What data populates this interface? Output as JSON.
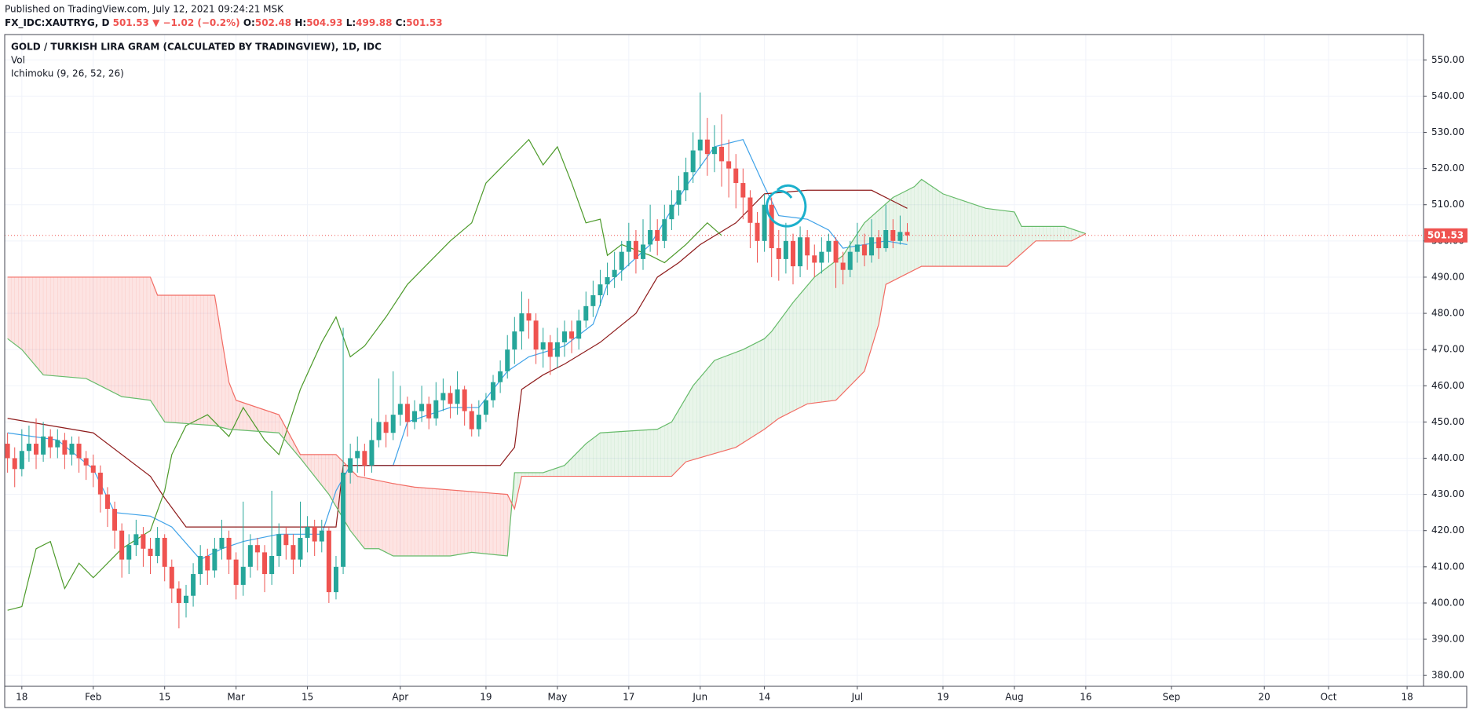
{
  "header": {
    "published": "Published on TradingView.com, July 12, 2021 09:24:21 MSK",
    "symbol": "FX_IDC:XAUTRYG, D",
    "change": "▼ −1.02 (−0.2%)",
    "o": "O:",
    "h": "H:",
    "l": "L:",
    "c": "C:"
  },
  "chart_data": {
    "type": "candlestick",
    "title": "GOLD / TURKISH LIRA GRAM (CALCULATED BY TRADINGVIEW), 1D, IDC",
    "indicators": [
      "Vol",
      "Ichimoku (9, 26, 52, 26)"
    ],
    "up_color": "#26a69a",
    "down_color": "#ef5350",
    "grid": true,
    "xlim": [
      -0.4,
      198.3
    ],
    "ylim": [
      377,
      557
    ],
    "xticks": [
      {
        "value": 2,
        "label": "18"
      },
      {
        "value": 12,
        "label": "Feb"
      },
      {
        "value": 22,
        "label": "15"
      },
      {
        "value": 32,
        "label": "Mar"
      },
      {
        "value": 42,
        "label": "15"
      },
      {
        "value": 55,
        "label": "Apr"
      },
      {
        "value": 67,
        "label": "19"
      },
      {
        "value": 77,
        "label": "May"
      },
      {
        "value": 87,
        "label": "17"
      },
      {
        "value": 97,
        "label": "Jun"
      },
      {
        "value": 106,
        "label": "14"
      },
      {
        "value": 119,
        "label": "Jul"
      },
      {
        "value": 131,
        "label": "19"
      },
      {
        "value": 141,
        "label": "Aug"
      },
      {
        "value": 151,
        "label": "16"
      },
      {
        "value": 163,
        "label": "Sep"
      },
      {
        "value": 176,
        "label": "20"
      },
      {
        "value": 185,
        "label": "Oct"
      },
      {
        "value": 196,
        "label": "18"
      }
    ],
    "yticks": [
      {
        "value": 380,
        "label": "380.00"
      },
      {
        "value": 390,
        "label": "390.00"
      },
      {
        "value": 400,
        "label": "400.00"
      },
      {
        "value": 410,
        "label": "410.00"
      },
      {
        "value": 420,
        "label": "420.00"
      },
      {
        "value": 430,
        "label": "430.00"
      },
      {
        "value": 440,
        "label": "440.00"
      },
      {
        "value": 450,
        "label": "450.00"
      },
      {
        "value": 460,
        "label": "460.00"
      },
      {
        "value": 470,
        "label": "470.00"
      },
      {
        "value": 480,
        "label": "480.00"
      },
      {
        "value": 490,
        "label": "490.00"
      },
      {
        "value": 500,
        "label": "500.00"
      },
      {
        "value": 510,
        "label": "510.00"
      },
      {
        "value": 520,
        "label": "520.00"
      },
      {
        "value": 530,
        "label": "530.00"
      },
      {
        "value": 540,
        "label": "540.00"
      },
      {
        "value": 550,
        "label": "550.00"
      }
    ],
    "ohlc": [
      [
        444,
        447,
        436,
        440
      ],
      [
        440,
        443,
        432,
        437
      ],
      [
        437,
        448,
        435,
        442
      ],
      [
        442,
        449,
        439,
        444
      ],
      [
        444,
        451,
        437,
        441
      ],
      [
        441,
        450,
        439,
        446
      ],
      [
        446,
        448,
        440,
        443
      ],
      [
        443,
        448,
        440,
        445
      ],
      [
        445,
        447,
        437,
        441
      ],
      [
        441,
        446,
        438,
        444
      ],
      [
        444,
        446,
        436,
        440
      ],
      [
        440,
        442,
        434,
        438
      ],
      [
        438,
        441,
        432,
        436
      ],
      [
        436,
        438,
        425,
        430
      ],
      [
        430,
        432,
        421,
        426
      ],
      [
        426,
        428,
        415,
        420
      ],
      [
        420,
        422,
        407,
        412
      ],
      [
        412,
        419,
        408,
        416
      ],
      [
        416,
        423,
        413,
        419
      ],
      [
        419,
        421,
        410,
        415
      ],
      [
        415,
        418,
        408,
        413
      ],
      [
        413,
        421,
        411,
        418
      ],
      [
        418,
        419,
        406,
        410
      ],
      [
        410,
        412,
        400,
        404
      ],
      [
        404,
        406,
        393,
        400
      ],
      [
        400,
        405,
        396,
        402
      ],
      [
        402,
        411,
        399,
        408
      ],
      [
        408,
        416,
        405,
        413
      ],
      [
        413,
        415,
        405,
        409
      ],
      [
        409,
        418,
        407,
        415
      ],
      [
        415,
        423,
        412,
        418
      ],
      [
        418,
        420,
        408,
        412
      ],
      [
        412,
        414,
        401,
        405
      ],
      [
        405,
        428,
        402,
        410
      ],
      [
        410,
        419,
        407,
        416
      ],
      [
        416,
        418,
        409,
        414
      ],
      [
        414,
        416,
        403,
        408
      ],
      [
        408,
        431,
        405,
        413
      ],
      [
        413,
        422,
        410,
        419
      ],
      [
        419,
        421,
        412,
        416
      ],
      [
        416,
        419,
        408,
        412
      ],
      [
        412,
        428,
        410,
        418
      ],
      [
        418,
        424,
        414,
        421
      ],
      [
        421,
        423,
        413,
        417
      ],
      [
        417,
        423,
        414,
        420
      ],
      [
        420,
        421,
        400,
        403
      ],
      [
        403,
        413,
        401,
        410
      ],
      [
        410,
        476,
        408,
        436
      ],
      [
        436,
        444,
        433,
        440
      ],
      [
        440,
        446,
        436,
        442
      ],
      [
        442,
        444,
        435,
        438
      ],
      [
        438,
        451,
        436,
        445
      ],
      [
        445,
        462,
        443,
        450
      ],
      [
        450,
        452,
        443,
        447
      ],
      [
        447,
        464,
        445,
        452
      ],
      [
        452,
        460,
        449,
        455
      ],
      [
        455,
        457,
        446,
        450
      ],
      [
        450,
        456,
        448,
        453
      ],
      [
        453,
        460,
        450,
        455
      ],
      [
        455,
        457,
        448,
        451
      ],
      [
        451,
        461,
        449,
        456
      ],
      [
        456,
        462,
        453,
        458
      ],
      [
        458,
        460,
        451,
        455
      ],
      [
        455,
        464,
        452,
        459
      ],
      [
        459,
        460,
        449,
        453
      ],
      [
        453,
        455,
        446,
        448
      ],
      [
        448,
        456,
        446,
        452
      ],
      [
        452,
        458,
        450,
        456
      ],
      [
        456,
        463,
        454,
        461
      ],
      [
        461,
        467,
        458,
        464
      ],
      [
        464,
        474,
        462,
        470
      ],
      [
        470,
        479,
        466,
        475
      ],
      [
        475,
        486,
        470,
        480
      ],
      [
        480,
        484,
        473,
        478
      ],
      [
        478,
        480,
        466,
        470
      ],
      [
        470,
        476,
        465,
        472
      ],
      [
        472,
        474,
        463,
        468
      ],
      [
        468,
        476,
        465,
        472
      ],
      [
        472,
        478,
        468,
        475
      ],
      [
        475,
        478,
        469,
        473
      ],
      [
        473,
        481,
        470,
        478
      ],
      [
        478,
        486,
        476,
        482
      ],
      [
        482,
        489,
        479,
        485
      ],
      [
        485,
        492,
        482,
        488
      ],
      [
        488,
        494,
        485,
        490
      ],
      [
        490,
        497,
        487,
        492
      ],
      [
        492,
        500,
        489,
        497
      ],
      [
        497,
        505,
        493,
        500
      ],
      [
        500,
        503,
        491,
        495
      ],
      [
        495,
        506,
        492,
        499
      ],
      [
        499,
        510,
        497,
        503
      ],
      [
        503,
        506,
        496,
        500
      ],
      [
        500,
        510,
        498,
        506
      ],
      [
        506,
        514,
        503,
        510
      ],
      [
        510,
        518,
        507,
        514
      ],
      [
        514,
        523,
        511,
        519
      ],
      [
        519,
        530,
        516,
        525
      ],
      [
        525,
        541,
        520,
        528
      ],
      [
        528,
        534,
        518,
        524
      ],
      [
        524,
        532,
        519,
        526
      ],
      [
        526,
        535,
        515,
        522
      ],
      [
        522,
        528,
        512,
        520
      ],
      [
        520,
        524,
        509,
        516
      ],
      [
        516,
        520,
        506,
        512
      ],
      [
        512,
        514,
        498,
        505
      ],
      [
        505,
        508,
        494,
        500
      ],
      [
        500,
        513,
        497,
        510
      ],
      [
        510,
        512,
        490,
        498
      ],
      [
        498,
        503,
        489,
        495
      ],
      [
        495,
        505,
        491,
        500
      ],
      [
        500,
        502,
        488,
        493
      ],
      [
        493,
        504,
        490,
        501
      ],
      [
        501,
        503,
        492,
        496
      ],
      [
        496,
        499,
        490,
        494
      ],
      [
        494,
        501,
        491,
        497
      ],
      [
        497,
        502,
        494,
        500
      ],
      [
        500,
        501,
        487,
        494
      ],
      [
        494,
        497,
        488,
        492
      ],
      [
        492,
        500,
        490,
        497
      ],
      [
        497,
        505,
        494,
        499
      ],
      [
        499,
        502,
        493,
        496
      ],
      [
        496,
        506,
        494,
        501
      ],
      [
        501,
        503,
        495,
        498
      ],
      [
        498,
        510,
        497,
        503
      ],
      [
        503,
        506,
        498,
        500
      ],
      [
        500,
        507,
        499,
        502.48
      ],
      [
        502.48,
        504.93,
        499.88,
        501.53
      ]
    ],
    "lines": [
      {
        "color": "#3fa2e8",
        "x": [
          0,
          7,
          12,
          15,
          20,
          23,
          27,
          30,
          33,
          38,
          44,
          46,
          48,
          54,
          56,
          62,
          66,
          70,
          73,
          78,
          82,
          84,
          90,
          95,
          99,
          103,
          106,
          108,
          112,
          115,
          117,
          123,
          126
        ],
        "values": [
          447,
          445,
          437,
          425,
          424,
          421,
          412,
          415,
          417,
          419,
          419,
          431,
          438,
          438,
          450,
          454,
          454,
          464,
          468,
          471,
          477,
          488,
          499,
          515,
          526,
          528,
          515,
          507,
          506,
          503,
          498,
          500,
          499
        ]
      },
      {
        "color": "#8e1b1b",
        "x": [
          0,
          12,
          20,
          22,
          25,
          38,
          46,
          47,
          54,
          69,
          71,
          72,
          75,
          78,
          83,
          88,
          91,
          94,
          97,
          102,
          106,
          112,
          121,
          126
        ],
        "values": [
          451,
          447,
          435,
          429,
          421,
          421,
          421,
          438,
          438,
          438,
          443,
          459,
          463,
          466,
          472,
          480,
          490,
          494,
          499,
          505,
          513,
          514,
          514,
          509
        ]
      },
      {
        "color": "#4c9a2a",
        "x": [
          0,
          2,
          4,
          6,
          8,
          10,
          12,
          16,
          20,
          22,
          23,
          25,
          28,
          31,
          33,
          36,
          38,
          41,
          44,
          46,
          48,
          50,
          53,
          56,
          58,
          62,
          65,
          67,
          70,
          73,
          75,
          77,
          79,
          81,
          83,
          84,
          86,
          90,
          92,
          95,
          98,
          100
        ],
        "values": [
          398,
          399,
          415,
          417,
          404,
          411,
          407,
          415,
          420,
          431,
          441,
          449,
          452,
          446,
          454,
          445,
          441,
          459,
          472,
          479,
          468,
          471,
          479,
          488,
          492,
          500,
          505,
          516,
          522,
          528,
          521,
          526,
          516,
          505,
          506,
          496,
          499,
          496,
          494,
          499,
          505,
          501.53
        ]
      },
      {
        "color": "#66bb6a",
        "x": [
          0,
          2,
          5,
          11,
          16,
          20,
          22,
          29,
          31,
          38,
          41,
          45,
          48,
          50,
          52,
          54,
          62,
          65,
          70,
          71,
          75,
          78,
          81,
          83,
          91,
          93,
          96,
          99,
          103,
          106,
          107,
          110,
          113,
          117,
          120,
          124,
          127,
          128,
          131,
          137,
          141,
          142,
          148,
          151
        ],
        "values": [
          473,
          470,
          463,
          462,
          457,
          456,
          450,
          449,
          448,
          447,
          440,
          430,
          420,
          415,
          415,
          413,
          413,
          414,
          413,
          436,
          436,
          438,
          444,
          447,
          448,
          450,
          460,
          467,
          470,
          473,
          475,
          483,
          490,
          496,
          505,
          512,
          515,
          517,
          513,
          509,
          508,
          504,
          504,
          502
        ]
      },
      {
        "color": "#f26c64",
        "x": [
          0,
          20,
          21,
          29,
          31,
          32,
          38,
          41,
          46,
          49,
          54,
          57,
          70,
          71,
          72,
          93,
          95,
          102,
          106,
          108,
          112,
          116,
          120,
          122,
          123,
          125,
          128,
          140,
          144,
          149,
          151
        ],
        "values": [
          490,
          490,
          485,
          485,
          461,
          456,
          452,
          441,
          441,
          435,
          433,
          432,
          430,
          426,
          435,
          435,
          439,
          443,
          448,
          451,
          455,
          456,
          464,
          477,
          488,
          490,
          493,
          493,
          500,
          500,
          502
        ]
      }
    ],
    "cloud": {
      "lines": [
        3,
        4
      ],
      "up_color": "rgba(76,175,80,0.12)",
      "down_color": "rgba(244,67,54,0.14)"
    },
    "price_line_color": "#ef5350"
  }
}
